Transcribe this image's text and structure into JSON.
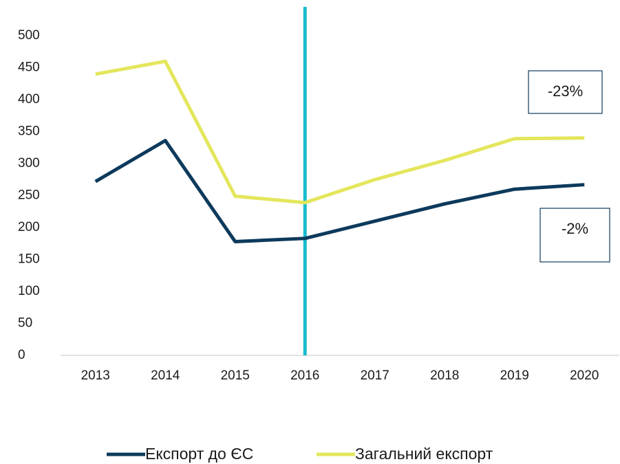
{
  "chart_data": {
    "type": "line",
    "categories": [
      "2013",
      "2014",
      "2015",
      "2016",
      "2017",
      "2018",
      "2019",
      "2020"
    ],
    "series": [
      {
        "name": "Експорт до ЄС",
        "color": "#0d3a5c",
        "values": [
          272,
          336,
          178,
          183,
          210,
          237,
          260,
          267
        ]
      },
      {
        "name": "Загальний експорт",
        "color": "#e4e65c",
        "values": [
          440,
          460,
          249,
          239,
          275,
          305,
          339,
          340
        ]
      }
    ],
    "ylim": [
      0,
      500
    ],
    "yticks": [
      0,
      50,
      100,
      150,
      200,
      250,
      300,
      350,
      400,
      450,
      500
    ],
    "grid": false,
    "legend": "bottom",
    "reference_line": {
      "category": "2016",
      "color": "#19bccf"
    },
    "annotations": [
      "-23%",
      "-2%"
    ]
  }
}
